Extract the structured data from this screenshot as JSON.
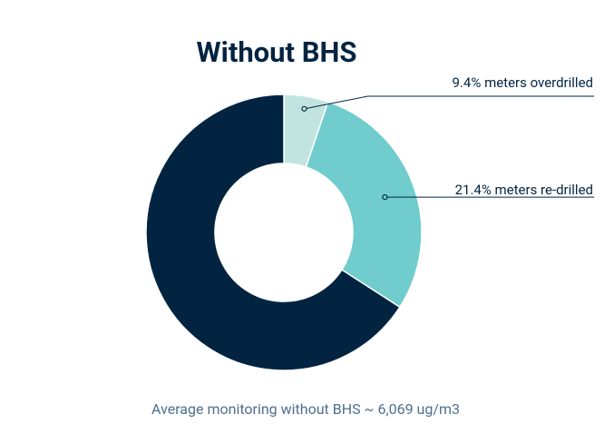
{
  "chart_data": {
    "type": "donut",
    "title": "Without BHS",
    "categories": [
      "9.4% meters overdrilled",
      "21.4% meters re-drilled",
      null
    ],
    "values": [
      5.2,
      28.9,
      65.9
    ],
    "colors": [
      "#c2e4df",
      "#70cccd",
      "#022441"
    ],
    "footnote": "Average monitoring without BHS ~ 6,069 ug/m3"
  }
}
